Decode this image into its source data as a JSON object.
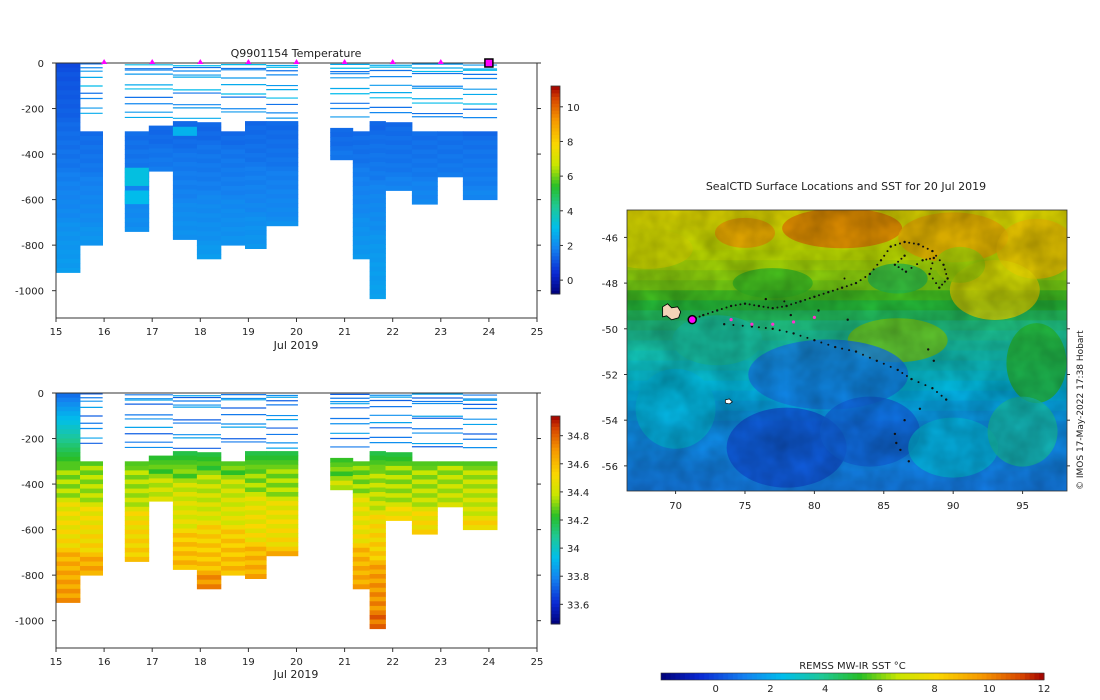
{
  "chart_data": [
    {
      "id": "temperature",
      "type": "heatmap",
      "title": "Q9901154  Temperature",
      "xlabel": "Jul 2019",
      "ylabel": "",
      "xlim": [
        15,
        25
      ],
      "ylim": [
        -1120,
        0
      ],
      "xticks": [
        "15",
        "16",
        "17",
        "18",
        "19",
        "20",
        "21",
        "22",
        "23",
        "24",
        "25"
      ],
      "yticks": [
        "0",
        "-200",
        "-400",
        "-600",
        "-800",
        "-1000"
      ],
      "colorbar": {
        "min": -0.8,
        "max": 11.2,
        "ticks": [
          "0",
          "2",
          "4",
          "6",
          "8",
          "10"
        ],
        "tick_values": [
          0,
          2,
          4,
          6,
          8,
          10
        ]
      },
      "profile_markers_x": [
        16,
        17,
        18,
        19,
        20,
        21,
        22,
        23
      ],
      "current_marker_x": 24
    },
    {
      "id": "salinity",
      "type": "heatmap",
      "title": "",
      "xlabel": "Jul 2019",
      "ylabel": "",
      "xlim": [
        15,
        25
      ],
      "ylim": [
        -1120,
        0
      ],
      "xticks": [
        "15",
        "16",
        "17",
        "18",
        "19",
        "20",
        "21",
        "22",
        "23",
        "24",
        "25"
      ],
      "yticks": [
        "0",
        "-200",
        "-400",
        "-600",
        "-800",
        "-1000"
      ],
      "colorbar": {
        "min": 33.46,
        "max": 34.94,
        "ticks": [
          "33.6",
          "33.8",
          "34",
          "34.2",
          "34.4",
          "34.6",
          "34.8"
        ],
        "tick_values": [
          33.6,
          33.8,
          34.0,
          34.2,
          34.4,
          34.6,
          34.8
        ]
      }
    },
    {
      "id": "sst_map",
      "type": "heatmap",
      "title": "SealCTD Surface Locations and SST for 20 Jul 2019",
      "xlabel": "",
      "ylabel": "",
      "xlim": [
        66.5,
        98.2
      ],
      "ylim": [
        -57.1,
        -44.8
      ],
      "xticks": [
        "70",
        "75",
        "80",
        "85",
        "90",
        "95"
      ],
      "yticks": [
        "-46",
        "-48",
        "-50",
        "-52",
        "-54",
        "-56"
      ],
      "colorbar": {
        "label": "REMSS MW-IR SST °C",
        "min": -2,
        "max": 12,
        "ticks": [
          "0",
          "2",
          "4",
          "6",
          "8",
          "10",
          "12"
        ],
        "tick_values": [
          0,
          2,
          4,
          6,
          8,
          10,
          12
        ]
      },
      "credit": "© IMOS 17-May-2022 17:38 Hobart",
      "current_position": {
        "lon": 71.2,
        "lat": -49.6
      },
      "island_lon_lat": [
        69.5,
        -49.3
      ]
    }
  ]
}
